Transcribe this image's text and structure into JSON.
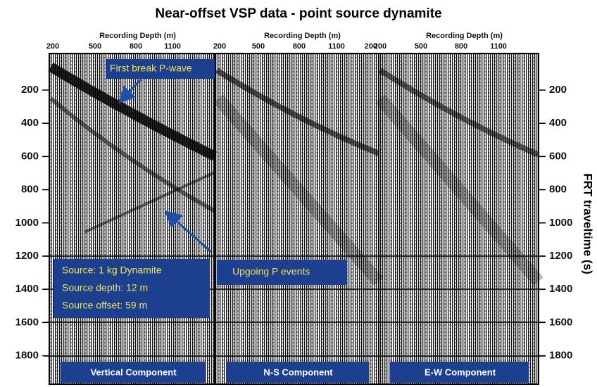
{
  "title": "Near-offset VSP data - point source dynamite",
  "panels": [
    {
      "x_axis_label": "Recording Depth (m)",
      "x_ticks": [
        200,
        500,
        800,
        1100
      ],
      "component": "Vertical Component"
    },
    {
      "x_axis_label": "Recording Depth (m)",
      "x_ticks": [
        200,
        500,
        800,
        1100
      ],
      "component": "N-S Component"
    },
    {
      "x_axis_label": "Recording Depth (m)",
      "x_ticks": [
        200,
        500,
        800,
        1100
      ],
      "component": "E-W Component"
    }
  ],
  "panel_end_tick": 200,
  "left_ticks": [
    200,
    400,
    600,
    800,
    1000,
    1200,
    1400,
    1600,
    1800
  ],
  "right_ticks": [
    200,
    400,
    600,
    800,
    1000,
    1200,
    1400,
    1600,
    1800
  ],
  "right_axis_label": "FRT traveltime (s)",
  "annotations": {
    "first_break": "First break P-wave",
    "source": [
      "Source: 1 kg Dynamite",
      "Source depth: 12 m",
      "Source offset: 59 m"
    ],
    "upgoing": "Upgoing P events"
  }
}
